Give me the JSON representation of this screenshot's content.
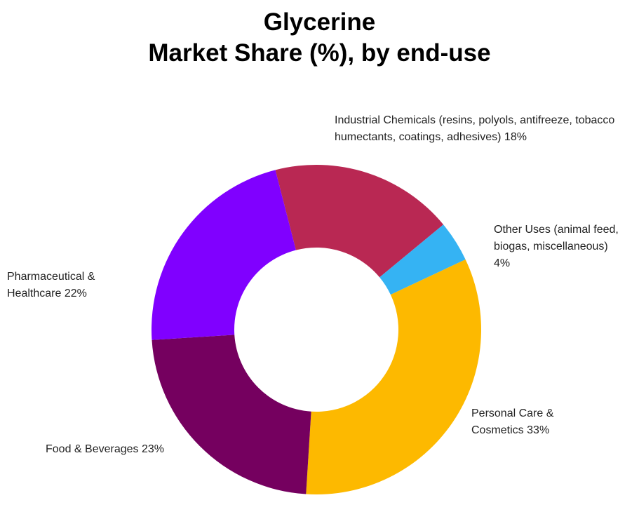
{
  "chart_data": {
    "type": "donut",
    "title": "Glycerine",
    "subtitle": "Market Share (%), by end-use",
    "categories": [
      "Industrial Chemicals (resins, polyols, antifreeze, tobacco humectants, coatings, adhesives)",
      "Other Uses (animal feed, biogas, miscellaneous)",
      "Personal Care & Cosmetics",
      "Food & Beverages",
      "Pharmaceutical & Healthcare"
    ],
    "values": [
      18,
      4,
      33,
      23,
      22
    ],
    "value_labels": [
      "18%",
      "4%",
      "33%",
      "23%",
      "22%"
    ],
    "colors": [
      "#b92853",
      "#35b3f3",
      "#fdb900",
      "#75005f",
      "#8000ff"
    ]
  }
}
